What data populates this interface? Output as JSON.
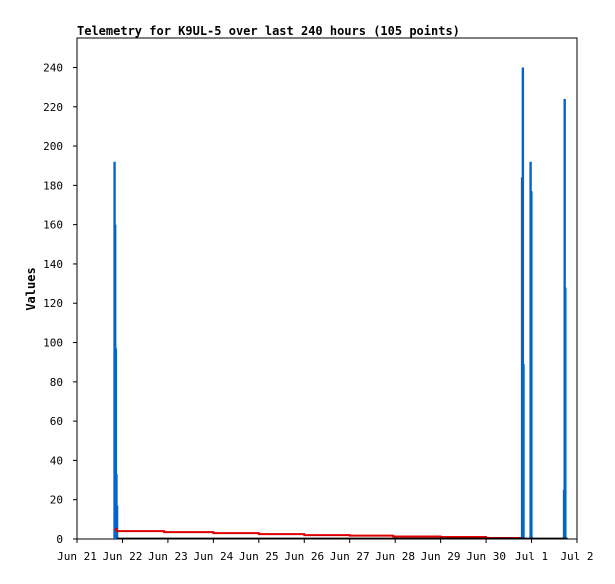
{
  "chart_data": {
    "type": "bar",
    "title": "Telemetry for K9UL-5 over last 240 hours (105 points)",
    "xlabel": "",
    "ylabel": "Values",
    "ylim": [
      0,
      255
    ],
    "xlim": [
      "2024-06-21T00:00",
      "2024-07-02T00:00"
    ],
    "grid": false,
    "x_ticks": [
      "Jun 21",
      "Jun 22",
      "Jun 23",
      "Jun 24",
      "Jun 25",
      "Jun 26",
      "Jun 27",
      "Jun 28",
      "Jun 29",
      "Jun 30",
      "Jul 1",
      "Jul 2"
    ],
    "y_ticks": [
      0,
      20,
      40,
      60,
      80,
      100,
      120,
      140,
      160,
      180,
      200,
      220,
      240
    ],
    "series": [
      {
        "color": "#0066cc",
        "render": "bars",
        "points": [
          {
            "x": "2024-06-21T19:50",
            "y": 192
          },
          {
            "x": "2024-06-21T20:10",
            "y": 160
          },
          {
            "x": "2024-06-21T20:30",
            "y": 97
          },
          {
            "x": "2024-06-21T20:50",
            "y": 33
          },
          {
            "x": "2024-06-21T21:10",
            "y": 17
          },
          {
            "x": "2024-06-30T19:00",
            "y": 184
          },
          {
            "x": "2024-06-30T19:25",
            "y": 240
          },
          {
            "x": "2024-06-30T19:45",
            "y": 89
          },
          {
            "x": "2024-06-30T23:30",
            "y": 192
          },
          {
            "x": "2024-06-30T23:55",
            "y": 177
          },
          {
            "x": "2024-07-01T17:10",
            "y": 25
          },
          {
            "x": "2024-07-01T17:30",
            "y": 224
          },
          {
            "x": "2024-07-01T17:50",
            "y": 128
          }
        ]
      },
      {
        "color": "#dd0000",
        "render": "step",
        "points": [
          {
            "x": "2024-06-21T20:00",
            "y": 5
          },
          {
            "x": "2024-06-21T21:00",
            "y": 4
          },
          {
            "x": "2024-06-22T22:00",
            "y": 3.5
          },
          {
            "x": "2024-06-24T00:00",
            "y": 3
          },
          {
            "x": "2024-06-25T00:00",
            "y": 2.5
          },
          {
            "x": "2024-06-26T00:00",
            "y": 2
          },
          {
            "x": "2024-06-27T00:00",
            "y": 1.7
          },
          {
            "x": "2024-06-27T23:00",
            "y": 1.3
          },
          {
            "x": "2024-06-29T00:00",
            "y": 1
          },
          {
            "x": "2024-06-30T00:00",
            "y": 0.5
          },
          {
            "x": "2024-06-30T18:30",
            "y": 0.5
          }
        ]
      },
      {
        "color": "#000000",
        "render": "line",
        "points": [
          {
            "x": "2024-06-21T21:00",
            "y": 0.3
          },
          {
            "x": "2024-07-01T19:00",
            "y": 0.3
          }
        ]
      }
    ]
  }
}
